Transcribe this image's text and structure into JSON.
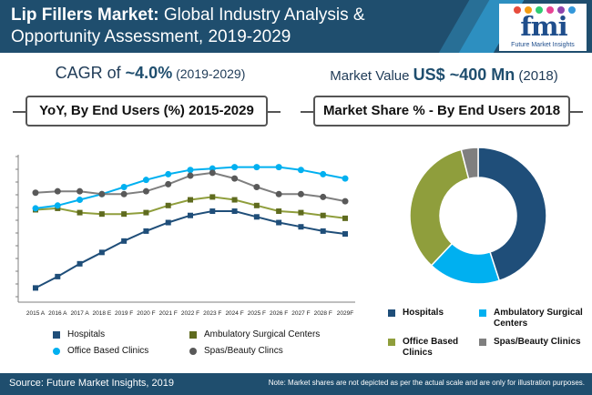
{
  "header": {
    "title_bold": "Lip Fillers Market:",
    "title_rest": " Global Industry Analysis & Opportunity Assessment, 2019-2029",
    "logo_text": "fmi",
    "logo_sub": "Future Market Insights"
  },
  "stats": {
    "cagr_prefix": "CAGR of ",
    "cagr_value": "~4.0%",
    "cagr_period": " (2019-2029)",
    "market_prefix": "Market Value ",
    "market_value": "US$ ~400 Mn",
    "market_year": " (2018)"
  },
  "subtitles": {
    "left": "YoY, By End Users (%) 2015-2029",
    "right": "Market Share % - By End Users 2018"
  },
  "legend_left": [
    {
      "label": "Hospitals",
      "marker": "square"
    },
    {
      "label": "Ambulatory Surgical Centers",
      "marker": "square"
    },
    {
      "label": "Office Based Clinics",
      "marker": "circle"
    },
    {
      "label": "Spas/Beauty Clincs",
      "marker": "circle"
    }
  ],
  "legend_right": [
    {
      "label": "Hospitals"
    },
    {
      "label": "Ambulatory Surgical Centers"
    },
    {
      "label": "Office Based Clinics"
    },
    {
      "label": "Spas/Beauty Clinics"
    }
  ],
  "colors": {
    "hospitals": "#1f4e79",
    "ambulatory": "#00b0f0",
    "office": "#8f9e3c",
    "spas": "#7f7f7f",
    "header_bg": "#1f4e6e"
  },
  "chart_data": [
    {
      "type": "line",
      "x": [
        "2015 A",
        "2016 A",
        "2017 A",
        "2018 E",
        "2019 F",
        "2020 F",
        "2021 F",
        "2022 F",
        "2023 F",
        "2024 F",
        "2025 F",
        "2026 F",
        "2027 F",
        "2028 F",
        "2029F"
      ],
      "y_axis_labels": "none",
      "grid": false,
      "legend": "bottom",
      "series": [
        {
          "name": "Hospitals",
          "marker": "square",
          "values": [
            1.0,
            1.8,
            2.7,
            3.5,
            4.3,
            5.0,
            5.6,
            6.1,
            6.4,
            6.4,
            6.0,
            5.6,
            5.3,
            5.0,
            4.8
          ]
        },
        {
          "name": "Ambulatory Surgical Centers",
          "marker": "square",
          "values": [
            6.5,
            6.6,
            6.3,
            6.2,
            6.2,
            6.3,
            6.8,
            7.2,
            7.4,
            7.2,
            6.8,
            6.4,
            6.3,
            6.1,
            5.9
          ]
        },
        {
          "name": "Office Based Clinics",
          "marker": "circle",
          "values": [
            6.6,
            6.8,
            7.2,
            7.6,
            8.1,
            8.6,
            9.0,
            9.3,
            9.4,
            9.5,
            9.5,
            9.5,
            9.3,
            9.0,
            8.7
          ]
        },
        {
          "name": "Spas/Beauty Clincs",
          "marker": "circle",
          "values": [
            7.7,
            7.8,
            7.8,
            7.6,
            7.6,
            7.8,
            8.3,
            8.9,
            9.1,
            8.7,
            8.1,
            7.6,
            7.6,
            7.4,
            7.1
          ]
        }
      ]
    },
    {
      "type": "pie",
      "style": "donut",
      "categories": [
        "Hospitals",
        "Ambulatory Surgical Centers",
        "Office Based Clinics",
        "Spas/Beauty Clinics"
      ],
      "values": [
        45,
        17,
        34,
        4
      ]
    }
  ],
  "footer": {
    "source": "Source: Future Market Insights, 2019",
    "note": "Note: Market shares are not depicted as per the actual scale and are only for illustration purposes."
  }
}
